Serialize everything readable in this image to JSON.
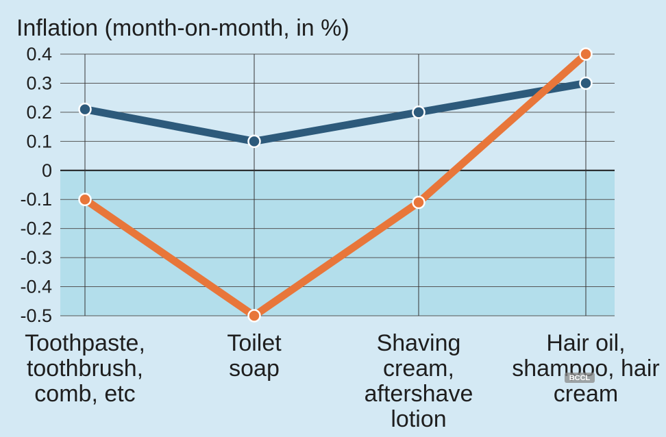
{
  "chart_data": {
    "type": "line",
    "title": "Inflation (month-on-month, in %)",
    "categories": [
      [
        "Toothpaste,",
        "toothbrush,",
        "comb, etc"
      ],
      [
        "Toilet",
        "soap"
      ],
      [
        "Shaving",
        "cream,",
        "aftershave",
        "lotion"
      ],
      [
        "Hair oil,",
        "shampoo, hair",
        "cream"
      ]
    ],
    "ylim": [
      -0.5,
      0.4
    ],
    "yticks": [
      "0.4",
      "0.3",
      "0.2",
      "0.1",
      "0",
      "-0.1",
      "-0.2",
      "-0.3",
      "-0.4",
      "-0.5"
    ],
    "grid": true,
    "series": [
      {
        "values": [
          0.21,
          0.1,
          0.2,
          0.3
        ],
        "color": "#2d5a7b"
      },
      {
        "values": [
          -0.1,
          -0.5,
          -0.11,
          0.4
        ],
        "color": "#e8763a"
      }
    ],
    "negative_region_color": "#b3deeb",
    "background_color": "#d4e9f4",
    "watermark": "BCCL"
  }
}
